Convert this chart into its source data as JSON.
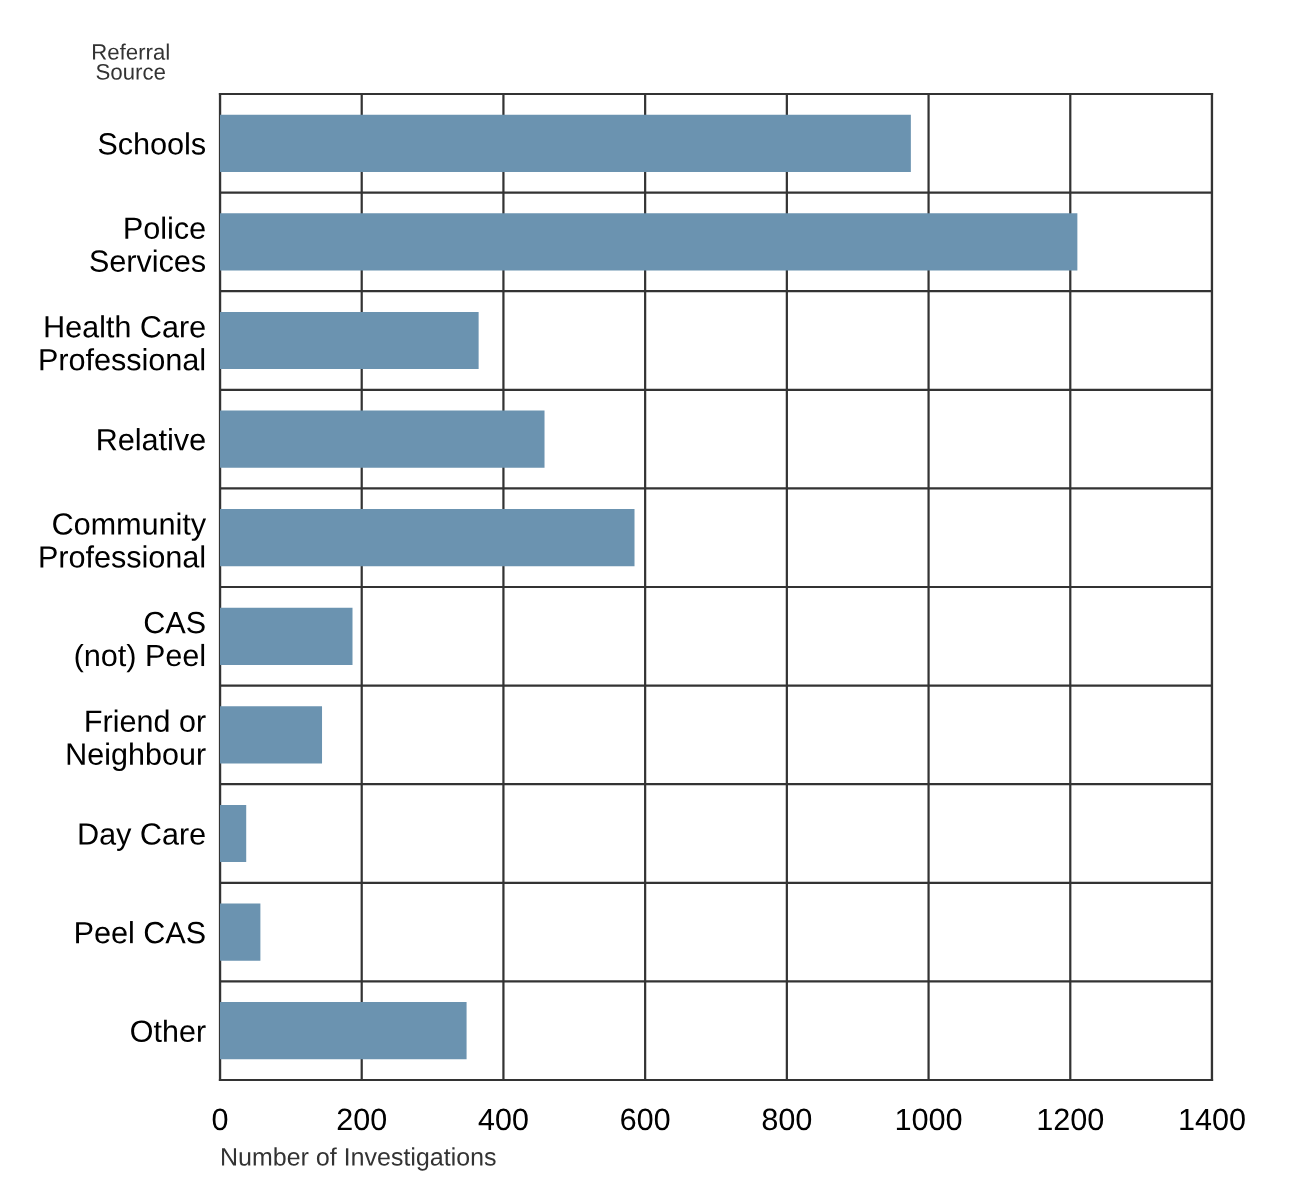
{
  "chart_data": {
    "type": "bar",
    "orientation": "horizontal",
    "ylabel": "Referral\nSource",
    "xlabel": "Number of Investigations",
    "categories": [
      "Schools",
      "Police\nServices",
      "Health Care\nProfessional",
      "Relative",
      "Community\nProfessional",
      "CAS\n(not) Peel",
      "Friend or\nNeighbour",
      "Day Care",
      "Peel CAS",
      "Other"
    ],
    "values": [
      975,
      1210,
      365,
      458,
      585,
      187,
      144,
      37,
      57,
      348
    ],
    "color": "#6b93b0",
    "xlim": [
      0,
      1400
    ],
    "xticks": [
      0,
      200,
      400,
      600,
      800,
      1000,
      1200,
      1400
    ],
    "grid": true
  }
}
